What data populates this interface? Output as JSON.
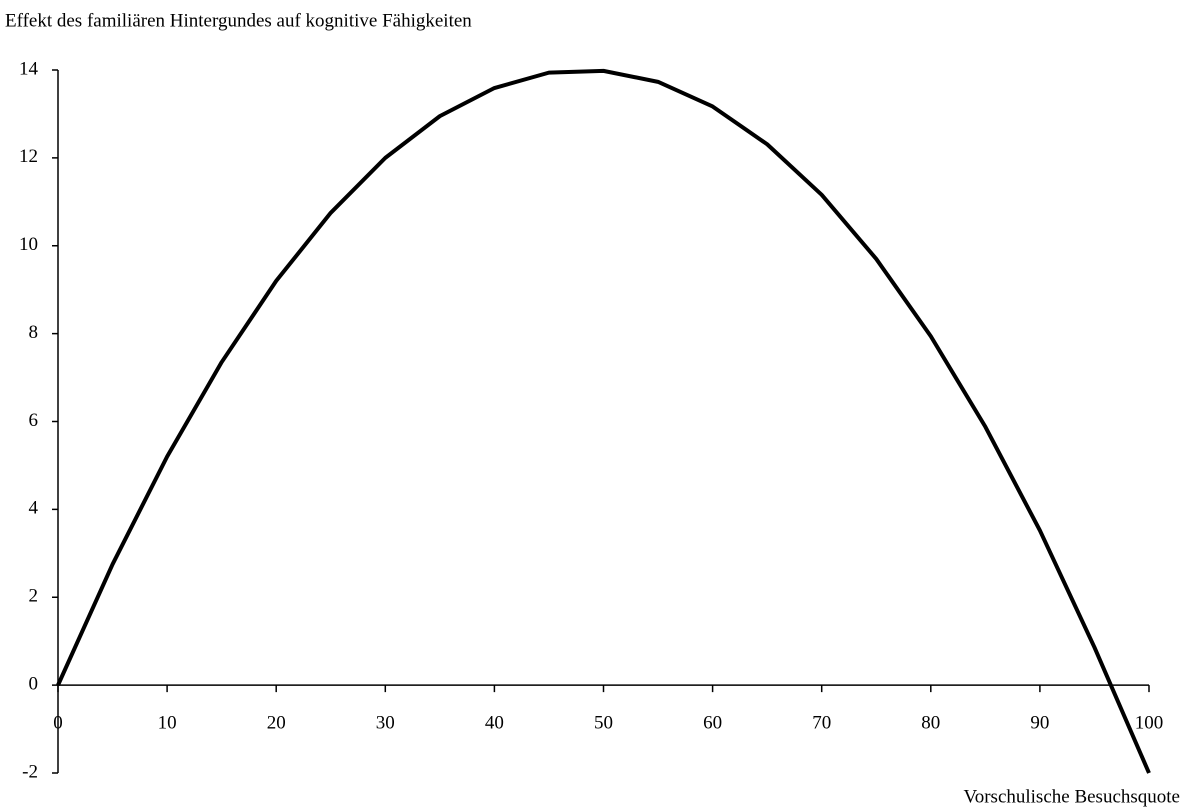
{
  "chart_data": {
    "type": "line",
    "title": "Effekt des familiären Hintergundes auf kognitive Fähigkeiten",
    "x_label": "Vorschulische Besuchsquote",
    "x": [
      0,
      5,
      10,
      15,
      20,
      25,
      30,
      35,
      40,
      45,
      50,
      55,
      60,
      65,
      70,
      75,
      80,
      85,
      90,
      95,
      100
    ],
    "values": [
      0,
      2.75,
      5.2,
      7.35,
      9.2,
      10.75,
      12.0,
      12.95,
      13.59,
      13.94,
      13.98,
      13.73,
      13.17,
      12.31,
      11.16,
      9.7,
      7.94,
      5.88,
      3.52,
      0.86,
      -2.0
    ],
    "color": "#000000",
    "xlim": [
      0,
      100
    ],
    "ylim": [
      -2,
      14
    ],
    "xticks": [
      0,
      10,
      20,
      30,
      40,
      50,
      60,
      70,
      80,
      90,
      100
    ],
    "yticks": [
      -2,
      0,
      2,
      4,
      6,
      8,
      10,
      12,
      14
    ],
    "grid": false
  }
}
